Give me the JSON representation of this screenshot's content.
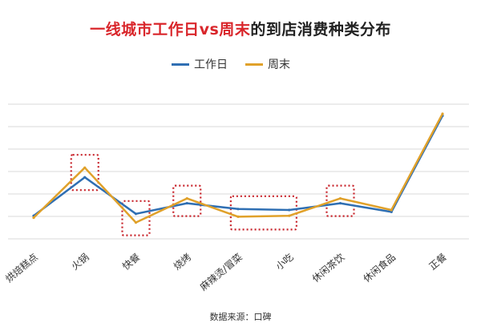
{
  "chart_data": {
    "type": "line",
    "title": "一线城市工作日vs周末的到店消费种类分布",
    "title_highlight": "一线城市工作日vs周末",
    "title_rest": "的到店消费种类分布",
    "categories": [
      "烘焙糕点",
      "火锅",
      "快餐",
      "烧烤",
      "麻辣烫/冒菜",
      "小吃",
      "休闲茶饮",
      "休闲食品",
      "正餐"
    ],
    "series": [
      {
        "name": "工作日",
        "color": "#2f6fb3",
        "values": [
          1.2,
          3.2,
          1.3,
          1.85,
          1.55,
          1.5,
          1.85,
          1.4,
          6.4
        ]
      },
      {
        "name": "周末",
        "color": "#e0a12a",
        "values": [
          1.1,
          3.7,
          0.85,
          2.1,
          1.15,
          1.2,
          2.1,
          1.5,
          6.5
        ]
      }
    ],
    "ylim": [
      0,
      7
    ],
    "grid": true,
    "legend_position": "top",
    "highlighted_categories": [
      1,
      2,
      3,
      4,
      5,
      6
    ],
    "highlight_color": "#c8242b",
    "source": "数据来源：口碑"
  }
}
